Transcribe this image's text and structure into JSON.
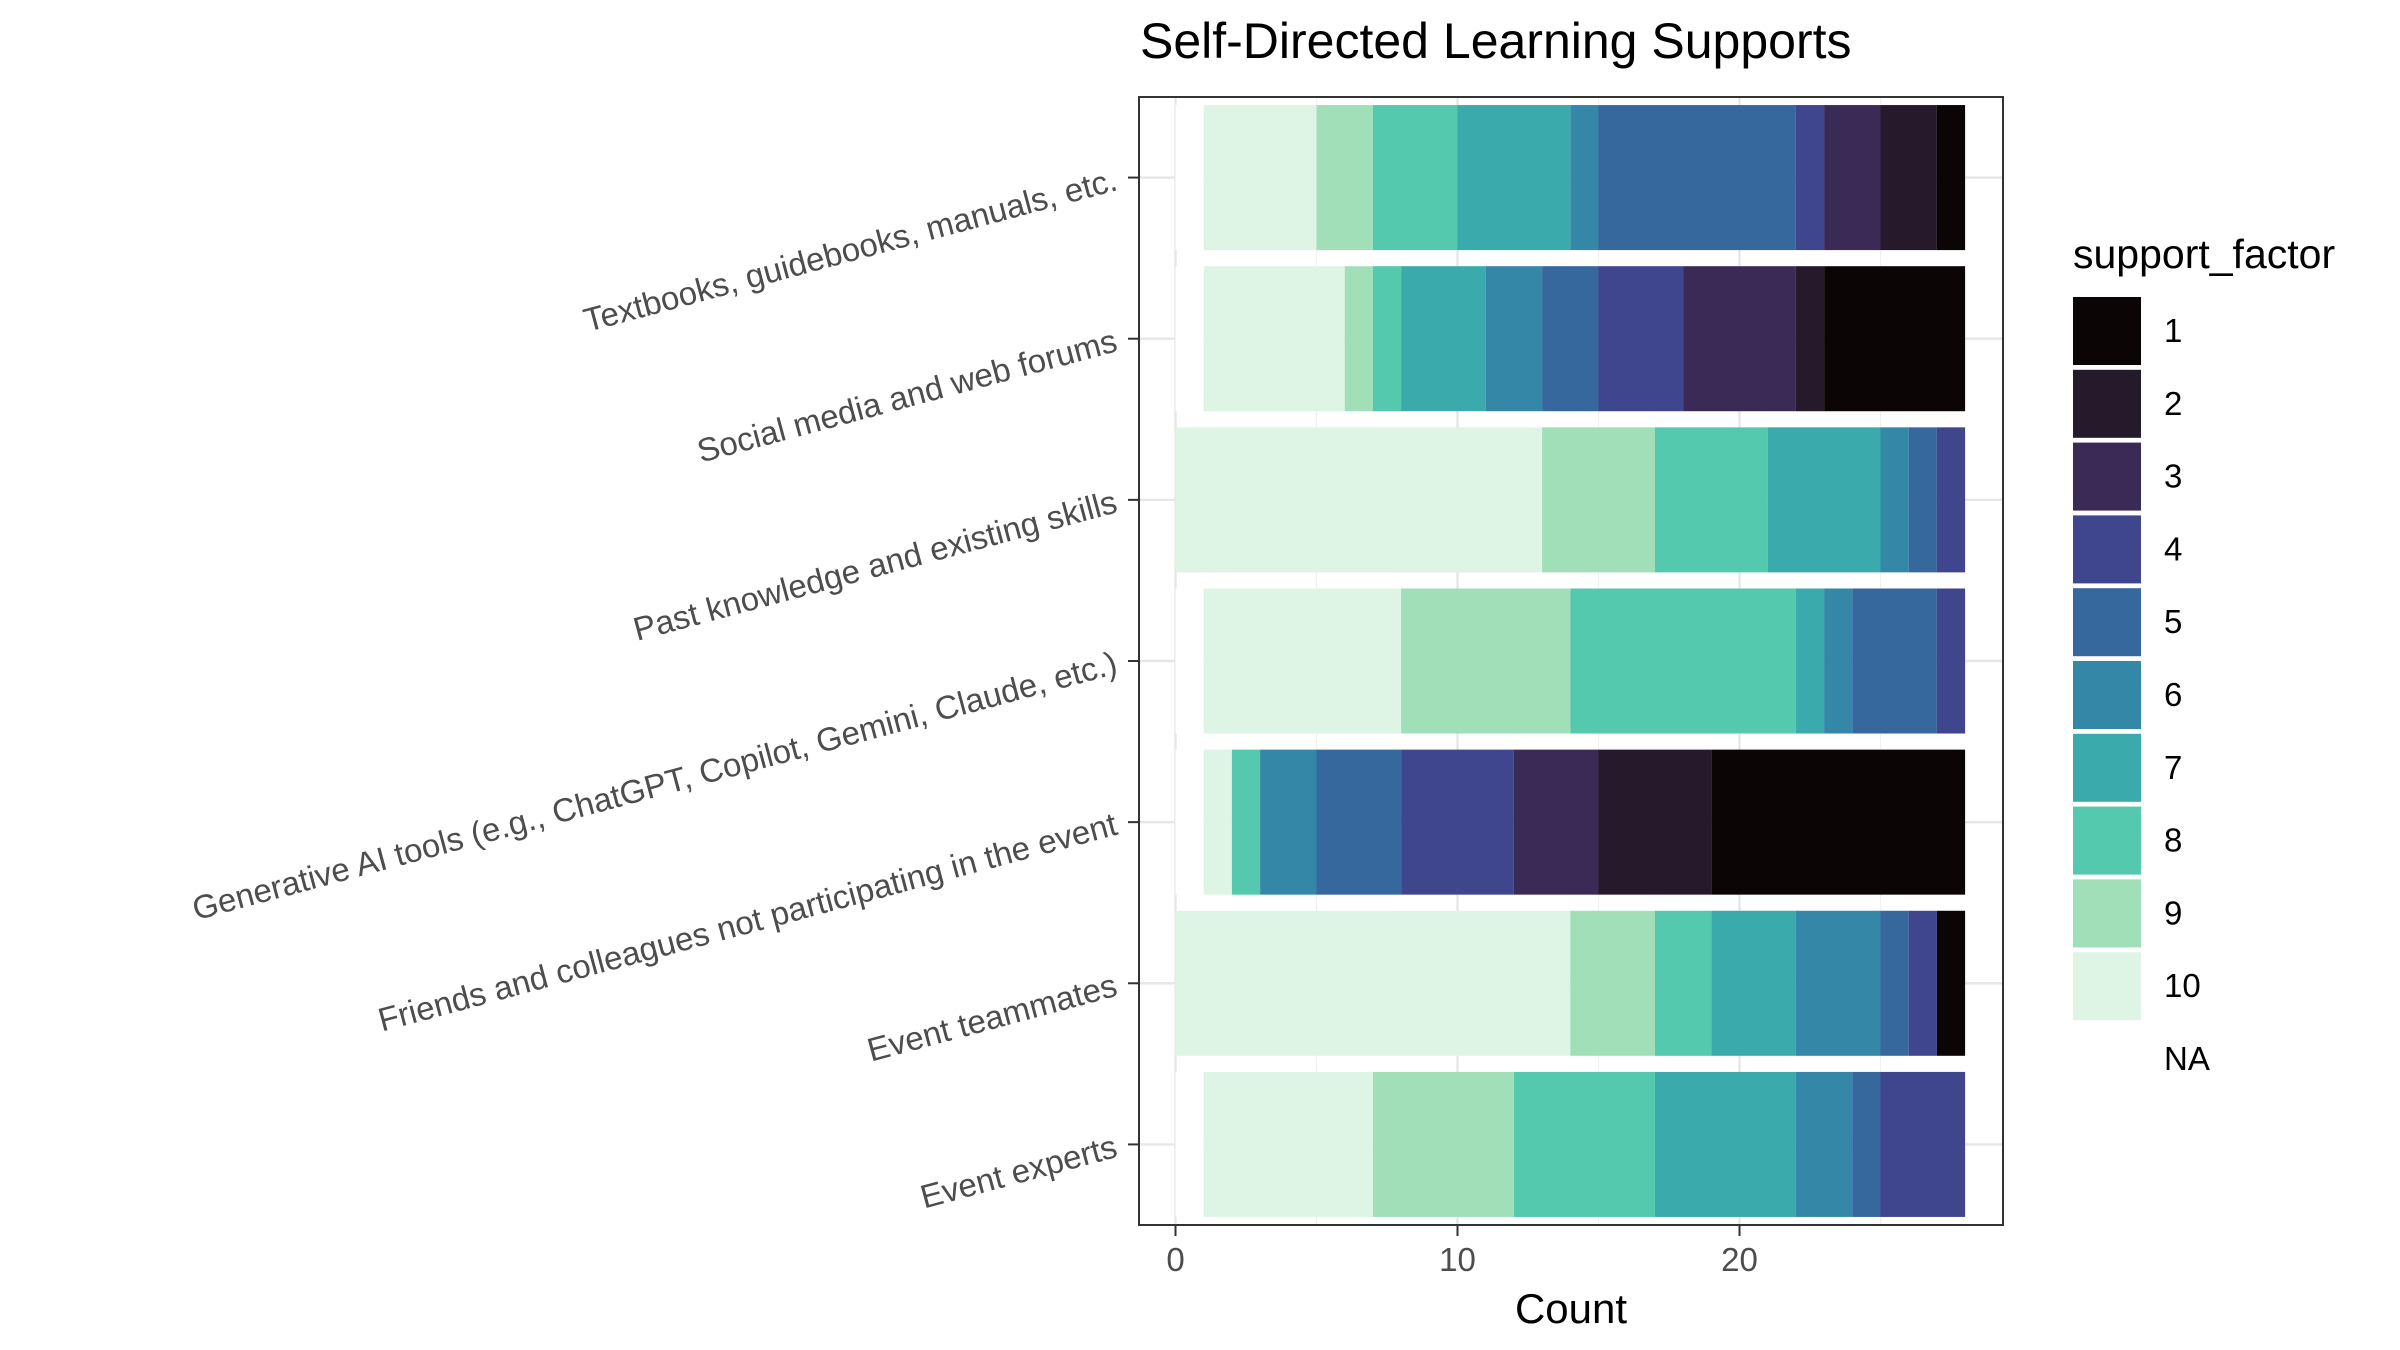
{
  "chart_data": {
    "type": "bar",
    "orientation": "horizontal",
    "stacked": true,
    "title": "Self-Directed Learning Supports",
    "xlabel": "Count",
    "ylabel": "",
    "xlim": [
      0,
      28
    ],
    "xticks": [
      0,
      10,
      20
    ],
    "grid": true,
    "legend_position": "right",
    "legend_title": "support_factor",
    "legend_entries": [
      {
        "label": "1",
        "color": "#0b0505"
      },
      {
        "label": "2",
        "color": "#251a2c"
      },
      {
        "label": "3",
        "color": "#392b55"
      },
      {
        "label": "4",
        "color": "#40468d"
      },
      {
        "label": "5",
        "color": "#36679d"
      },
      {
        "label": "6",
        "color": "#3487a6"
      },
      {
        "label": "7",
        "color": "#3aaaac"
      },
      {
        "label": "8",
        "color": "#55c9ad"
      },
      {
        "label": "9",
        "color": "#a1dfb9"
      },
      {
        "label": "10",
        "color": "#def5e5"
      },
      {
        "label": "NA",
        "color": "#ffffff"
      }
    ],
    "categories": [
      "Textbooks, guidebooks, manuals, etc.",
      "Social media and web forums",
      "Past knowledge and existing skills",
      "Generative AI tools (e.g., ChatGPT, Copilot, Gemini, Claude, etc.)",
      "Friends and colleagues not participating in the event",
      "Event teammates",
      "Event experts"
    ],
    "series": [
      {
        "name": "NA",
        "values": [
          1,
          1,
          0,
          1,
          1,
          0,
          1
        ]
      },
      {
        "name": "10",
        "values": [
          4,
          5,
          13,
          7,
          1,
          14,
          6
        ]
      },
      {
        "name": "9",
        "values": [
          2,
          1,
          4,
          6,
          0,
          3,
          5
        ]
      },
      {
        "name": "8",
        "values": [
          3,
          1,
          4,
          8,
          1,
          2,
          5
        ]
      },
      {
        "name": "7",
        "values": [
          4,
          3,
          4,
          1,
          0,
          3,
          5
        ]
      },
      {
        "name": "6",
        "values": [
          1,
          2,
          1,
          1,
          2,
          3,
          2
        ]
      },
      {
        "name": "5",
        "values": [
          7,
          2,
          1,
          3,
          3,
          1,
          1
        ]
      },
      {
        "name": "4",
        "values": [
          1,
          3,
          1,
          1,
          4,
          1,
          3
        ]
      },
      {
        "name": "3",
        "values": [
          2,
          4,
          0,
          0,
          3,
          0,
          0
        ]
      },
      {
        "name": "2",
        "values": [
          2,
          1,
          0,
          0,
          4,
          0,
          0
        ]
      },
      {
        "name": "1",
        "values": [
          1,
          5,
          0,
          0,
          9,
          1,
          0
        ]
      }
    ]
  }
}
